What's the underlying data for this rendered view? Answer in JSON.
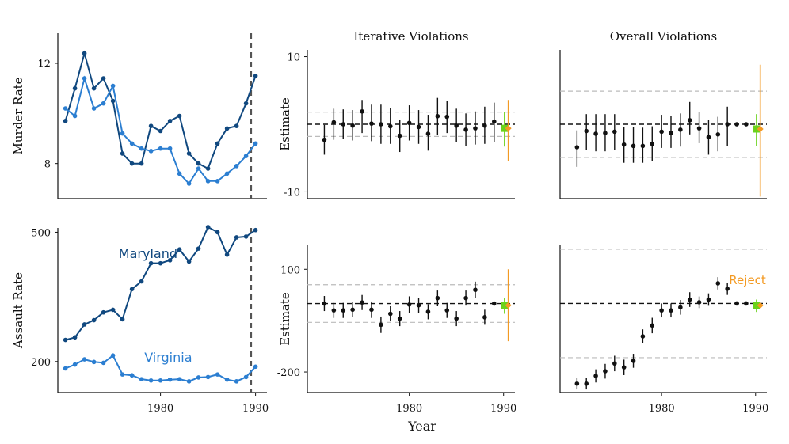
{
  "figure": {
    "xlabel": "Year"
  },
  "colors": {
    "maryland": "#10487f",
    "virginia": "#2b7ed1",
    "estimate": "#111111",
    "green": "#6ad21a",
    "orange": "#f39a23",
    "band": "#bbbbbb",
    "axis": "#111111",
    "vline": "#555555"
  },
  "chart_data": [
    {
      "id": "murder",
      "type": "line",
      "ylabel": "Murder Rate",
      "ylim": [
        6.6,
        13.2
      ],
      "xlim": [
        1969.2,
        1991.2
      ],
      "yticks": [
        8,
        12
      ],
      "xticks": [],
      "vline": 1989.5,
      "series": [
        {
          "name": "Maryland",
          "color_key": "maryland",
          "x": [
            1970,
            1971,
            1972,
            1973,
            1974,
            1975,
            1976,
            1977,
            1978,
            1979,
            1980,
            1981,
            1982,
            1983,
            1984,
            1985,
            1986,
            1987,
            1988,
            1989,
            1990
          ],
          "y": [
            9.7,
            11.0,
            12.4,
            11.0,
            11.4,
            10.5,
            8.4,
            8.0,
            8.0,
            9.5,
            9.3,
            9.7,
            9.9,
            8.4,
            8.0,
            7.8,
            8.8,
            9.4,
            9.5,
            10.4,
            11.5
          ]
        },
        {
          "name": "Virginia",
          "color_key": "virginia",
          "x": [
            1970,
            1971,
            1972,
            1973,
            1974,
            1975,
            1976,
            1977,
            1978,
            1979,
            1980,
            1981,
            1982,
            1983,
            1984,
            1985,
            1986,
            1987,
            1988,
            1989,
            1990
          ],
          "y": [
            10.2,
            9.9,
            11.4,
            10.2,
            10.4,
            11.1,
            9.2,
            8.8,
            8.6,
            8.5,
            8.6,
            8.6,
            7.6,
            7.2,
            7.8,
            7.3,
            7.3,
            7.6,
            7.9,
            8.3,
            8.8
          ]
        }
      ]
    },
    {
      "id": "assault",
      "type": "line",
      "ylabel": "Assault Rate",
      "ylim": [
        128,
        510
      ],
      "xlim": [
        1969.2,
        1991.2
      ],
      "yticks": [
        200,
        500
      ],
      "xticks": [
        1980,
        1990
      ],
      "vline": 1989.5,
      "series": [
        {
          "name": "Maryland",
          "color_key": "maryland",
          "x": [
            1970,
            1971,
            1972,
            1973,
            1974,
            1975,
            1976,
            1977,
            1978,
            1979,
            1980,
            1981,
            1982,
            1983,
            1984,
            1985,
            1986,
            1987,
            1988,
            1989,
            1990
          ],
          "y": [
            250,
            256,
            286,
            296,
            314,
            320,
            298,
            368,
            386,
            428,
            428,
            435,
            460,
            432,
            462,
            512,
            500,
            448,
            488,
            490,
            505
          ]
        },
        {
          "name": "Virginia",
          "color_key": "virginia",
          "x": [
            1970,
            1971,
            1972,
            1973,
            1974,
            1975,
            1976,
            1977,
            1978,
            1979,
            1980,
            1981,
            1982,
            1983,
            1984,
            1985,
            1986,
            1987,
            1988,
            1989,
            1990
          ],
          "y": [
            184,
            193,
            205,
            199,
            197,
            214,
            170,
            168,
            159,
            156,
            156,
            158,
            159,
            154,
            163,
            164,
            170,
            158,
            154,
            164,
            188
          ]
        }
      ],
      "annotations": [
        {
          "text": "Maryland",
          "x": 1975.6,
          "y": 440,
          "color_key": "maryland"
        },
        {
          "text": "Virginia",
          "x": 1978.3,
          "y": 200,
          "color_key": "virginia"
        }
      ]
    },
    {
      "id": "iter-murder",
      "type": "scatter",
      "title": "Iterative Violations",
      "ylabel": "Estimate",
      "ylim": [
        -11,
        11
      ],
      "xlim": [
        1969.2,
        1991.2
      ],
      "yticks": [
        -10,
        10
      ],
      "xticks": [],
      "hline": 0,
      "bands": [
        -1.8,
        1.8
      ],
      "points": {
        "x": [
          1971,
          1972,
          1973,
          1974,
          1975,
          1976,
          1977,
          1978,
          1979,
          1980,
          1981,
          1982,
          1983,
          1984,
          1985,
          1986,
          1987,
          1988,
          1989
        ],
        "y": [
          -2.3,
          0.3,
          0.0,
          -0.2,
          1.9,
          0.1,
          0.0,
          -0.3,
          -1.7,
          0.2,
          -0.4,
          -1.4,
          1.2,
          1.1,
          -0.2,
          -0.8,
          -0.6,
          -0.2,
          0.4
        ],
        "lo": [
          -4.5,
          -2.3,
          -2.2,
          -2.4,
          -1.3,
          -2.5,
          -2.9,
          -2.9,
          -4.1,
          -2.4,
          -2.9,
          -3.9,
          -1.6,
          -1.3,
          -2.6,
          -3.2,
          -3.0,
          -2.9,
          -2.6
        ],
        "hi": [
          -0.1,
          2.3,
          2.2,
          2.1,
          3.6,
          2.9,
          2.9,
          2.4,
          0.7,
          2.8,
          2.1,
          1.4,
          3.9,
          3.5,
          2.3,
          1.6,
          1.9,
          2.6,
          3.2
        ]
      },
      "green": {
        "x": 1990.1,
        "y": -0.6,
        "lo": -3.3,
        "hi": 1.8
      },
      "orange": {
        "x": 1990.5,
        "y": -0.6,
        "lo": -5.5,
        "hi": 3.6
      }
    },
    {
      "id": "overall-murder",
      "type": "scatter",
      "title": "Overall Violations",
      "ylabel": "",
      "ylim": [
        -11,
        11
      ],
      "xlim": [
        1969.2,
        1991.2
      ],
      "yticks": [],
      "xticks": [],
      "hline": 0,
      "bands": [
        -4.9,
        4.9
      ],
      "points": {
        "x": [
          1971,
          1972,
          1973,
          1974,
          1975,
          1976,
          1977,
          1978,
          1979,
          1980,
          1981,
          1982,
          1983,
          1984,
          1985,
          1986,
          1987,
          1988,
          1989
        ],
        "y": [
          -3.4,
          -1.0,
          -1.4,
          -1.3,
          -1.1,
          -3.0,
          -3.2,
          -3.2,
          -2.9,
          -1.1,
          -1.3,
          -0.8,
          0.6,
          -0.6,
          -1.9,
          -1.5,
          0.0,
          0.0,
          0.0
        ],
        "lo": [
          -6.3,
          -3.8,
          -4.0,
          -4.0,
          -3.8,
          -5.7,
          -5.7,
          -5.7,
          -5.5,
          -3.5,
          -3.5,
          -3.3,
          -1.5,
          -2.8,
          -4.5,
          -4.0,
          -3.2,
          0.0,
          0.0
        ],
        "hi": [
          -0.9,
          1.5,
          1.5,
          1.5,
          1.5,
          -0.4,
          -0.4,
          -0.5,
          -0.3,
          1.4,
          1.2,
          1.6,
          3.3,
          1.8,
          0.7,
          1.1,
          2.6,
          0.0,
          0.0
        ]
      },
      "green": {
        "x": 1990.1,
        "y": -0.7,
        "lo": -3.2,
        "hi": 1.5
      },
      "orange": {
        "x": 1990.5,
        "y": -0.7,
        "lo": -10.7,
        "hi": 8.8
      }
    },
    {
      "id": "iter-assault",
      "type": "scatter",
      "title": "",
      "ylabel": "Estimate",
      "ylim": [
        -260,
        170
      ],
      "xlim": [
        1969.2,
        1991.2
      ],
      "yticks": [
        -200,
        100
      ],
      "xticks": [
        1980,
        1990
      ],
      "hline": 0,
      "bands": [
        -55,
        55
      ],
      "points": {
        "x": [
          1971,
          1972,
          1973,
          1974,
          1975,
          1976,
          1977,
          1978,
          1979,
          1980,
          1981,
          1982,
          1983,
          1984,
          1985,
          1986,
          1987,
          1988,
          1989
        ],
        "y": [
          0,
          -20,
          -20,
          -18,
          3,
          -18,
          -62,
          -30,
          -44,
          -3,
          -5,
          -24,
          16,
          -20,
          -44,
          16,
          40,
          -40,
          0
        ],
        "lo": [
          -22,
          -42,
          -42,
          -40,
          -19,
          -42,
          -86,
          -52,
          -66,
          -27,
          -27,
          -46,
          -8,
          -42,
          -66,
          -6,
          16,
          -62,
          0
        ],
        "hi": [
          22,
          2,
          2,
          4,
          25,
          6,
          -38,
          -8,
          -22,
          21,
          17,
          -2,
          38,
          2,
          -22,
          38,
          64,
          -18,
          0
        ]
      },
      "green": {
        "x": 1990.1,
        "y": -5,
        "lo": -30,
        "hi": 15
      },
      "orange": {
        "x": 1990.5,
        "y": -5,
        "lo": -110,
        "hi": 100
      }
    },
    {
      "id": "overall-assault",
      "type": "scatter",
      "title": "",
      "ylabel": "",
      "ylim": [
        -230,
        150
      ],
      "xlim": [
        1969.2,
        1991.2
      ],
      "yticks": [],
      "xticks": [
        1980,
        1990
      ],
      "hline": 0,
      "bands": [
        -140,
        140
      ],
      "annotation": {
        "text": "Reject",
        "x": 1991.1,
        "y": 60,
        "color_key": "orange"
      },
      "points": {
        "x": [
          1971,
          1972,
          1973,
          1974,
          1975,
          1976,
          1977,
          1978,
          1979,
          1980,
          1981,
          1982,
          1983,
          1984,
          1985,
          1986,
          1987,
          1988,
          1989
        ],
        "y": [
          -207,
          -207,
          -187,
          -175,
          -155,
          -165,
          -148,
          -85,
          -57,
          -18,
          -18,
          -10,
          10,
          3,
          10,
          52,
          38,
          0,
          0
        ],
        "lo": [
          -222,
          -222,
          -204,
          -194,
          -175,
          -185,
          -166,
          -103,
          -77,
          -36,
          -36,
          -29,
          -9,
          -12,
          -6,
          36,
          22,
          0,
          0
        ],
        "hi": [
          -192,
          -192,
          -170,
          -156,
          -135,
          -145,
          -130,
          -67,
          -37,
          0,
          0,
          9,
          29,
          18,
          26,
          68,
          54,
          0,
          0
        ]
      },
      "green": {
        "x": 1990.1,
        "y": -5,
        "lo": -22,
        "hi": 10
      },
      "orange": {
        "x": 1990.5,
        "y": -5,
        "lo": -5,
        "hi": -5
      }
    }
  ]
}
